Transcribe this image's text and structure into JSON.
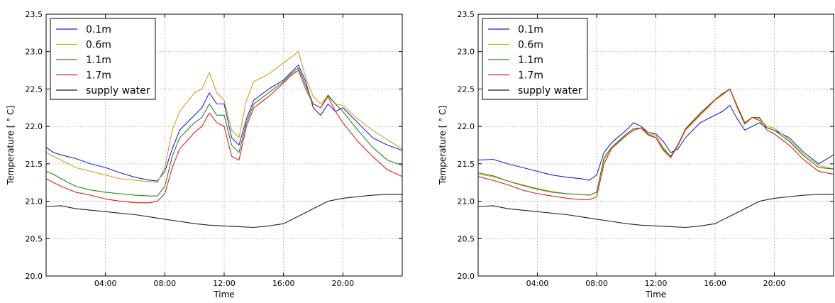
{
  "colors": {
    "0.1m": "#1f1fe6",
    "0.6m": "#d4a017",
    "1.1m": "#1e8c1e",
    "1.7m": "#e61e1e",
    "supply water": "#222222",
    "grid": "#9a9a9a"
  },
  "chart_data": [
    {
      "type": "line",
      "title": "",
      "xlabel": "Time",
      "ylabel": "Temperature [ ° C]",
      "xlim": [
        0,
        24
      ],
      "ylim": [
        20.0,
        23.5
      ],
      "xticks": [
        4,
        8,
        12,
        16,
        20
      ],
      "xtick_labels": [
        "04:00",
        "08:00",
        "12:00",
        "16:00",
        "20:00"
      ],
      "yticks": [
        20.0,
        20.5,
        21.0,
        21.5,
        22.0,
        22.5,
        23.0,
        23.5
      ],
      "ytick_labels": [
        "20.0",
        "20.5",
        "21.0",
        "21.5",
        "22.0",
        "22.5",
        "23.0",
        "23.5"
      ],
      "grid": true,
      "legend_position": "top-left",
      "series": [
        {
          "name": "0.1m",
          "x": [
            0,
            0.5,
            1,
            2,
            3,
            4,
            5,
            6,
            7,
            7.5,
            8,
            8.5,
            9,
            10,
            10.5,
            11,
            11.5,
            12,
            12.5,
            13,
            13.5,
            14,
            15,
            16,
            16.5,
            17,
            17.5,
            18,
            18.5,
            19,
            19.5,
            20,
            21,
            22,
            23,
            24
          ],
          "y": [
            21.72,
            21.65,
            21.62,
            21.57,
            21.5,
            21.45,
            21.38,
            21.32,
            21.28,
            21.27,
            21.4,
            21.7,
            21.95,
            22.15,
            22.25,
            22.45,
            22.3,
            22.3,
            21.85,
            21.75,
            22.1,
            22.35,
            22.5,
            22.62,
            22.72,
            22.82,
            22.6,
            22.25,
            22.15,
            22.3,
            22.2,
            22.25,
            22.05,
            21.85,
            21.75,
            21.68
          ]
        },
        {
          "name": "0.6m",
          "x": [
            0,
            0.5,
            1,
            2,
            3,
            4,
            5,
            6,
            7,
            7.5,
            8,
            8.5,
            9,
            10,
            10.5,
            11,
            11.5,
            12,
            12.5,
            13,
            13.5,
            14,
            15,
            16,
            16.5,
            17,
            17.5,
            18,
            18.5,
            19,
            19.5,
            20,
            21,
            22,
            23,
            24
          ],
          "y": [
            21.65,
            21.6,
            21.55,
            21.45,
            21.4,
            21.35,
            21.3,
            21.28,
            21.26,
            21.25,
            21.45,
            21.95,
            22.2,
            22.45,
            22.5,
            22.72,
            22.45,
            22.35,
            21.95,
            21.85,
            22.35,
            22.6,
            22.7,
            22.85,
            22.92,
            23.0,
            22.65,
            22.4,
            22.3,
            22.4,
            22.3,
            22.28,
            22.1,
            21.95,
            21.82,
            21.7
          ]
        },
        {
          "name": "1.1m",
          "x": [
            0,
            0.5,
            1,
            2,
            3,
            4,
            5,
            6,
            7,
            7.5,
            8,
            8.5,
            9,
            10,
            10.5,
            11,
            11.5,
            12,
            12.5,
            13,
            13.5,
            14,
            15,
            16,
            16.5,
            17,
            17.5,
            18,
            18.5,
            19,
            19.5,
            20,
            21,
            22,
            23,
            24
          ],
          "y": [
            21.4,
            21.36,
            21.3,
            21.2,
            21.15,
            21.12,
            21.1,
            21.08,
            21.07,
            21.07,
            21.2,
            21.6,
            21.85,
            22.05,
            22.12,
            22.3,
            22.15,
            22.15,
            21.75,
            21.65,
            22.05,
            22.3,
            22.45,
            22.6,
            22.7,
            22.78,
            22.55,
            22.3,
            22.25,
            22.42,
            22.3,
            22.2,
            21.95,
            21.72,
            21.55,
            21.48
          ]
        },
        {
          "name": "1.7m",
          "x": [
            0,
            0.5,
            1,
            2,
            3,
            4,
            5,
            6,
            7,
            7.5,
            8,
            8.5,
            9,
            10,
            10.5,
            11,
            11.5,
            12,
            12.5,
            13,
            13.5,
            14,
            15,
            16,
            16.5,
            17,
            17.5,
            18,
            18.5,
            19,
            19.5,
            20,
            21,
            22,
            23,
            24
          ],
          "y": [
            21.3,
            21.25,
            21.2,
            21.12,
            21.08,
            21.03,
            21.0,
            20.98,
            20.98,
            21.0,
            21.1,
            21.45,
            21.7,
            21.92,
            22.0,
            22.18,
            22.05,
            22.0,
            21.6,
            21.55,
            22.0,
            22.25,
            22.4,
            22.58,
            22.68,
            22.75,
            22.5,
            22.3,
            22.25,
            22.4,
            22.2,
            22.05,
            21.8,
            21.6,
            21.42,
            21.33
          ]
        },
        {
          "name": "supply water",
          "x": [
            0,
            1,
            2,
            3,
            4,
            5,
            6,
            7,
            8,
            9,
            10,
            11,
            12,
            13,
            14,
            15,
            16,
            17,
            18,
            19,
            20,
            21,
            22,
            23,
            24
          ],
          "y": [
            20.93,
            20.94,
            20.9,
            20.88,
            20.86,
            20.84,
            20.82,
            20.79,
            20.76,
            20.73,
            20.7,
            20.68,
            20.67,
            20.66,
            20.65,
            20.67,
            20.7,
            20.8,
            20.9,
            21.0,
            21.04,
            21.06,
            21.08,
            21.09,
            21.09
          ]
        }
      ]
    },
    {
      "type": "line",
      "title": "",
      "xlabel": "Time",
      "ylabel": "Temperature [ ° C]",
      "xlim": [
        0,
        24
      ],
      "ylim": [
        20.0,
        23.5
      ],
      "xticks": [
        4,
        8,
        12,
        16,
        20
      ],
      "xtick_labels": [
        "04:00",
        "08:00",
        "12:00",
        "16:00",
        "20:00"
      ],
      "yticks": [
        20.0,
        20.5,
        21.0,
        21.5,
        22.0,
        22.5,
        23.0,
        23.5
      ],
      "ytick_labels": [
        "20.0",
        "20.5",
        "21.0",
        "21.5",
        "22.0",
        "22.5",
        "23.0",
        "23.5"
      ],
      "grid": true,
      "legend_position": "top-left",
      "series": [
        {
          "name": "0.1m",
          "x": [
            0,
            1,
            2,
            3,
            4,
            5,
            6,
            7,
            7.5,
            8,
            8.5,
            9,
            10,
            10.5,
            11,
            11.5,
            12,
            12.5,
            13,
            13.5,
            14,
            15,
            16,
            16.5,
            17,
            17.5,
            18,
            18.5,
            19,
            19.5,
            20,
            21,
            22,
            23,
            24
          ],
          "y": [
            21.55,
            21.56,
            21.5,
            21.45,
            21.4,
            21.35,
            21.32,
            21.3,
            21.28,
            21.35,
            21.65,
            21.78,
            21.95,
            22.05,
            22.0,
            21.92,
            21.9,
            21.8,
            21.65,
            21.7,
            21.85,
            22.05,
            22.15,
            22.2,
            22.28,
            22.1,
            21.95,
            22.0,
            22.05,
            21.98,
            21.95,
            21.85,
            21.65,
            21.5,
            21.62
          ]
        },
        {
          "name": "0.6m",
          "x": [
            0,
            1,
            2,
            3,
            4,
            5,
            6,
            7,
            7.5,
            8,
            8.5,
            9,
            10,
            10.5,
            11,
            11.5,
            12,
            12.5,
            13,
            13.5,
            14,
            15,
            16,
            16.5,
            17,
            17.5,
            18,
            18.5,
            19,
            19.5,
            20,
            21,
            22,
            23,
            24
          ],
          "y": [
            21.36,
            21.33,
            21.27,
            21.22,
            21.17,
            21.13,
            21.1,
            21.09,
            21.08,
            21.12,
            21.55,
            21.72,
            21.88,
            21.95,
            21.98,
            21.92,
            21.88,
            21.72,
            21.6,
            21.75,
            21.95,
            22.15,
            22.35,
            22.42,
            22.5,
            22.28,
            22.05,
            22.12,
            22.1,
            22.0,
            21.98,
            21.82,
            21.62,
            21.48,
            21.43
          ]
        },
        {
          "name": "1.1m",
          "x": [
            0,
            1,
            2,
            3,
            4,
            5,
            6,
            7,
            7.5,
            8,
            8.5,
            9,
            10,
            10.5,
            11,
            11.5,
            12,
            12.5,
            13,
            13.5,
            14,
            15,
            16,
            16.5,
            17,
            17.5,
            18,
            18.5,
            19,
            19.5,
            20,
            21,
            22,
            23,
            24
          ],
          "y": [
            21.38,
            21.34,
            21.27,
            21.21,
            21.16,
            21.12,
            21.1,
            21.09,
            21.08,
            21.12,
            21.58,
            21.72,
            21.9,
            21.97,
            21.98,
            21.9,
            21.85,
            21.7,
            21.6,
            21.76,
            21.97,
            22.18,
            22.36,
            22.43,
            22.5,
            22.26,
            22.05,
            22.12,
            22.12,
            21.98,
            21.95,
            21.8,
            21.6,
            21.45,
            21.43
          ]
        },
        {
          "name": "1.7m",
          "x": [
            0,
            1,
            2,
            3,
            4,
            5,
            6,
            7,
            7.5,
            8,
            8.5,
            9,
            10,
            10.5,
            11,
            11.5,
            12,
            12.5,
            13,
            13.5,
            14,
            15,
            16,
            16.5,
            17,
            17.5,
            18,
            18.5,
            19,
            19.5,
            20,
            21,
            22,
            23,
            24
          ],
          "y": [
            21.33,
            21.28,
            21.22,
            21.15,
            21.1,
            21.07,
            21.04,
            21.02,
            21.02,
            21.06,
            21.5,
            21.7,
            21.88,
            21.95,
            21.98,
            21.88,
            21.85,
            21.68,
            21.58,
            21.75,
            21.96,
            22.16,
            22.36,
            22.44,
            22.5,
            22.25,
            22.03,
            22.12,
            22.08,
            21.95,
            21.9,
            21.75,
            21.55,
            21.4,
            21.36
          ]
        },
        {
          "name": "supply water",
          "x": [
            0,
            1,
            2,
            3,
            4,
            5,
            6,
            7,
            8,
            9,
            10,
            11,
            12,
            13,
            14,
            15,
            16,
            17,
            18,
            19,
            20,
            21,
            22,
            23,
            24
          ],
          "y": [
            20.93,
            20.94,
            20.9,
            20.88,
            20.86,
            20.84,
            20.82,
            20.79,
            20.76,
            20.73,
            20.7,
            20.68,
            20.67,
            20.66,
            20.65,
            20.67,
            20.7,
            20.8,
            20.9,
            21.0,
            21.04,
            21.06,
            21.08,
            21.09,
            21.09
          ]
        }
      ]
    }
  ]
}
